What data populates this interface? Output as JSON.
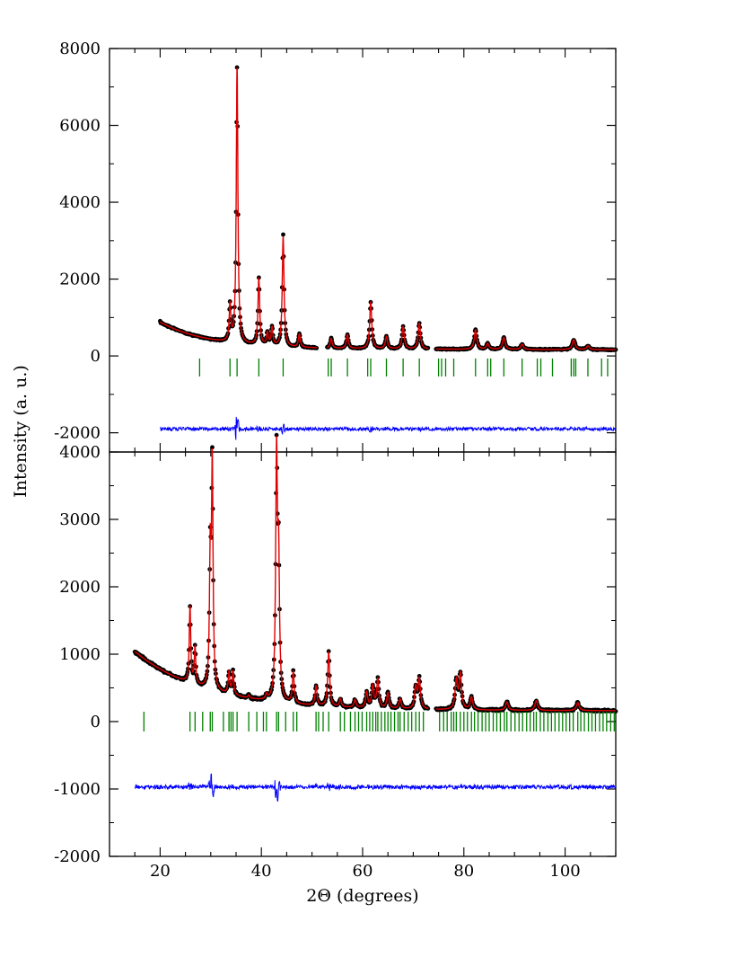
{
  "figure": {
    "ylabel": "Intensity (a. u.)",
    "xlabel": "2Θ (degrees)"
  },
  "colors": {
    "observed": "#000000",
    "calculated": "#e00000",
    "bragg": "#008000",
    "difference": "#0000ff",
    "axes": "#000000"
  },
  "chart_data": [
    {
      "type": "scatter",
      "panel": "top",
      "xlim": [
        10,
        110
      ],
      "ylim": [
        -2500,
        8000
      ],
      "yticks": [
        -2000,
        0,
        2000,
        4000,
        6000,
        8000
      ],
      "ytick_labels": [
        "-2000",
        "0",
        "2000",
        "4000",
        "6000",
        "8000"
      ],
      "x_range": [
        20,
        110
      ],
      "gaps": [
        [
          51,
          53
        ],
        [
          73,
          74.5
        ]
      ],
      "background": {
        "start": 880,
        "decay": 0.105,
        "floor": 190,
        "linear": 1.6
      },
      "peaks": [
        {
          "x": 33.8,
          "y": 1300
        },
        {
          "x": 35.2,
          "y": 7500
        },
        {
          "x": 39.5,
          "y": 2020
        },
        {
          "x": 41.2,
          "y": 580
        },
        {
          "x": 42.1,
          "y": 720
        },
        {
          "x": 44.3,
          "y": 3100
        },
        {
          "x": 47.5,
          "y": 560
        },
        {
          "x": 53.8,
          "y": 450
        },
        {
          "x": 57.0,
          "y": 550
        },
        {
          "x": 61.6,
          "y": 1400
        },
        {
          "x": 64.7,
          "y": 500
        },
        {
          "x": 68.0,
          "y": 750
        },
        {
          "x": 71.2,
          "y": 850
        },
        {
          "x": 82.3,
          "y": 680
        },
        {
          "x": 84.7,
          "y": 320
        },
        {
          "x": 87.9,
          "y": 480
        },
        {
          "x": 91.5,
          "y": 300
        },
        {
          "x": 101.7,
          "y": 420
        },
        {
          "x": 104.5,
          "y": 260
        }
      ],
      "bragg_positions": [
        27.8,
        33.8,
        35.2,
        39.5,
        44.3,
        53.2,
        53.8,
        57.0,
        61.0,
        61.6,
        64.7,
        68.0,
        71.2,
        75.0,
        75.6,
        76.4,
        78.0,
        82.3,
        84.7,
        85.3,
        87.9,
        91.5,
        94.5,
        95.2,
        97.5,
        101.2,
        101.7,
        102.1,
        104.5,
        107.2,
        108.4
      ],
      "bragg_level": -300,
      "difference_offset": -1900
    },
    {
      "type": "scatter",
      "panel": "bottom",
      "xlim": [
        10,
        110
      ],
      "ylim": [
        -2000,
        4000
      ],
      "yticks": [
        -2000,
        -1000,
        0,
        1000,
        2000,
        3000,
        4000
      ],
      "ytick_labels": [
        "-2000",
        "-1000",
        "0",
        "1000",
        "2000",
        "3000",
        "4000"
      ],
      "xticks": [
        20,
        40,
        60,
        80,
        100
      ],
      "xtick_labels": [
        "20",
        "40",
        "60",
        "80",
        "100"
      ],
      "x_range": [
        15,
        110
      ],
      "gaps": [
        [
          73,
          74.5
        ]
      ],
      "background": {
        "start": 1040,
        "decay": 0.072,
        "floor": 170,
        "linear": 0.5
      },
      "peaks": [
        {
          "x": 25.9,
          "y": 1700
        },
        {
          "x": 26.9,
          "y": 1080
        },
        {
          "x": 29.9,
          "y": 2350
        },
        {
          "x": 30.3,
          "y": 3730
        },
        {
          "x": 33.6,
          "y": 720
        },
        {
          "x": 34.4,
          "y": 730
        },
        {
          "x": 37.5,
          "y": 380
        },
        {
          "x": 41.0,
          "y": 380
        },
        {
          "x": 43.0,
          "y": 3830
        },
        {
          "x": 43.4,
          "y": 2200
        },
        {
          "x": 46.3,
          "y": 720
        },
        {
          "x": 50.8,
          "y": 520
        },
        {
          "x": 53.3,
          "y": 1020
        },
        {
          "x": 55.6,
          "y": 330
        },
        {
          "x": 58.5,
          "y": 320
        },
        {
          "x": 60.8,
          "y": 430
        },
        {
          "x": 62.0,
          "y": 520
        },
        {
          "x": 63.0,
          "y": 620
        },
        {
          "x": 65.0,
          "y": 420
        },
        {
          "x": 67.4,
          "y": 330
        },
        {
          "x": 70.5,
          "y": 500
        },
        {
          "x": 71.2,
          "y": 620
        },
        {
          "x": 78.5,
          "y": 600
        },
        {
          "x": 79.3,
          "y": 690
        },
        {
          "x": 81.5,
          "y": 360
        },
        {
          "x": 88.5,
          "y": 290
        },
        {
          "x": 94.3,
          "y": 310
        },
        {
          "x": 102.5,
          "y": 280
        }
      ],
      "bragg_positions": [
        16.8,
        25.9,
        26.9,
        28.4,
        29.9,
        30.3,
        32.5,
        33.6,
        34.0,
        34.4,
        35.2,
        37.5,
        39.1,
        40.4,
        41.0,
        43.0,
        43.4,
        44.8,
        46.3,
        47.0,
        50.8,
        51.3,
        52.2,
        53.3,
        55.6,
        56.4,
        57.6,
        58.5,
        59.2,
        59.9,
        60.8,
        61.4,
        62.0,
        62.6,
        63.0,
        63.7,
        64.4,
        65.0,
        65.6,
        66.3,
        67.0,
        67.4,
        68.2,
        69.0,
        69.7,
        70.5,
        71.2,
        72.0,
        75.2,
        76.0,
        76.7,
        77.5,
        78.0,
        78.5,
        79.3,
        80.0,
        80.7,
        81.5,
        82.1,
        82.8,
        83.6,
        84.3,
        85.0,
        85.8,
        86.5,
        87.2,
        88.0,
        88.5,
        89.3,
        90.1,
        90.9,
        91.6,
        92.4,
        93.1,
        93.8,
        94.3,
        95.1,
        95.8,
        96.6,
        97.3,
        98.0,
        98.8,
        99.5,
        100.2,
        100.9,
        101.6,
        102.5,
        103.1,
        103.8,
        104.6,
        105.3,
        106.0,
        106.8,
        107.5,
        108.2,
        109.0,
        109.7
      ],
      "bragg_level": 0,
      "difference_offset": -970
    }
  ]
}
